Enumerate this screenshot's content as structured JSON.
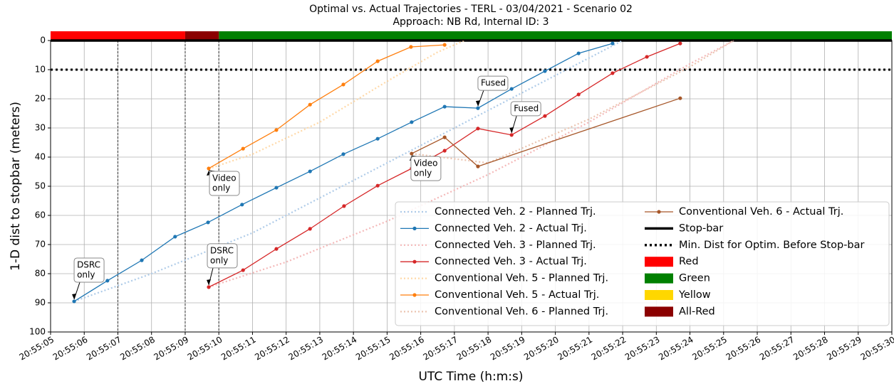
{
  "chart_data": {
    "type": "line",
    "title": "Optimal vs. Actual Trajectories - TERL - 03/04/2021 - Scenario 02",
    "subtitle": "Approach: NB Rd, Internal ID: 3",
    "x_label": "UTC Time (h:m:s)",
    "y_label": "1-D dist to stopbar (meters)",
    "xlim": [
      5,
      30
    ],
    "xticks": [
      {
        "value": 5,
        "label": "20:55:05"
      },
      {
        "value": 6,
        "label": "20:55:06"
      },
      {
        "value": 7,
        "label": "20:55:07"
      },
      {
        "value": 8,
        "label": "20:55:08"
      },
      {
        "value": 9,
        "label": "20:55:09"
      },
      {
        "value": 10,
        "label": "20:55:10"
      },
      {
        "value": 11,
        "label": "20:55:11"
      },
      {
        "value": 12,
        "label": "20:55:12"
      },
      {
        "value": 13,
        "label": "20:55:13"
      },
      {
        "value": 14,
        "label": "20:55:14"
      },
      {
        "value": 15,
        "label": "20:55:15"
      },
      {
        "value": 16,
        "label": "20:55:16"
      },
      {
        "value": 17,
        "label": "20:55:17"
      },
      {
        "value": 18,
        "label": "20:55:18"
      },
      {
        "value": 19,
        "label": "20:55:19"
      },
      {
        "value": 20,
        "label": "20:55:20"
      },
      {
        "value": 21,
        "label": "20:55:21"
      },
      {
        "value": 22,
        "label": "20:55:22"
      },
      {
        "value": 23,
        "label": "20:55:23"
      },
      {
        "value": 24,
        "label": "20:55:24"
      },
      {
        "value": 25,
        "label": "20:55:25"
      },
      {
        "value": 26,
        "label": "20:55:26"
      },
      {
        "value": 27,
        "label": "20:55:27"
      },
      {
        "value": 28,
        "label": "20:55:28"
      },
      {
        "value": 29,
        "label": "20:55:29"
      },
      {
        "value": 30,
        "label": "20:55:30"
      }
    ],
    "ylim": [
      100,
      0
    ],
    "yticks": [
      0,
      10,
      20,
      30,
      40,
      50,
      60,
      70,
      80,
      90,
      100
    ],
    "grid": true,
    "legend": "lower right",
    "series": [
      {
        "name": "Connected Veh. 2 - Planned Trj.",
        "color": "#aecbe8",
        "style": "dotted",
        "markers": false,
        "x": [
          5.7,
          8,
          11,
          14,
          17,
          20,
          22
        ],
        "values": [
          89.5,
          80,
          66,
          48,
          30,
          12,
          0
        ]
      },
      {
        "name": "Connected Veh. 2 - Actual Trj.",
        "color": "#1f77b4",
        "style": "solid",
        "markers": true,
        "x": [
          5.7,
          6.69,
          7.71,
          8.7,
          9.68,
          10.69,
          11.71,
          12.71,
          13.7,
          14.72,
          15.73,
          16.71,
          17.7,
          18.7,
          19.69,
          20.69,
          21.7
        ],
        "values": [
          89.5,
          82.4,
          75.4,
          67.3,
          62.4,
          56.3,
          50.5,
          44.9,
          39,
          33.7,
          28,
          22.7,
          23.2,
          16.6,
          10.5,
          4.4,
          1
        ]
      },
      {
        "name": "Connected Veh. 3 - Planned Trj.",
        "color": "#f4b8b8",
        "style": "dotted",
        "markers": false,
        "x": [
          9.7,
          12,
          15,
          18,
          21,
          24,
          25.3
        ],
        "values": [
          84.6,
          76,
          62,
          46,
          28,
          8,
          0
        ]
      },
      {
        "name": "Connected Veh. 3 - Actual Trj.",
        "color": "#d62728",
        "style": "solid",
        "markers": true,
        "x": [
          9.7,
          10.72,
          11.71,
          12.71,
          13.72,
          14.72,
          15.73,
          16.71,
          17.7,
          18.7,
          19.69,
          20.69,
          21.7,
          22.72,
          23.71
        ],
        "values": [
          84.6,
          78.8,
          71.5,
          64.6,
          56.8,
          49.8,
          43.9,
          37.8,
          30.2,
          32.4,
          25.9,
          18.5,
          11.2,
          5.6,
          1
        ]
      },
      {
        "name": "Conventional Veh. 5 - Planned Trj.",
        "color": "#ffd9a8",
        "style": "dotted",
        "markers": false,
        "x": [
          9.7,
          11,
          13,
          15,
          16.5,
          17.3
        ],
        "values": [
          44,
          39,
          28,
          14,
          4,
          0
        ]
      },
      {
        "name": "Conventional Veh. 5 - Actual Trj.",
        "color": "#ff7f0e",
        "style": "solid",
        "markers": true,
        "x": [
          9.7,
          10.72,
          11.71,
          12.71,
          13.7,
          14.72,
          15.71,
          16.71
        ],
        "values": [
          43.9,
          37.1,
          30.7,
          22,
          15.1,
          7.1,
          2.2,
          1.5
        ]
      },
      {
        "name": "Conventional Veh. 6 - Planned Trj.",
        "color": "#ebc4b0",
        "style": "dotted",
        "markers": false,
        "x": [
          15.73,
          18,
          21,
          24,
          25.3
        ],
        "values": [
          38.8,
          42,
          27,
          9,
          0
        ]
      },
      {
        "name": "Conventional Veh. 6 - Actual Trj.",
        "color": "#a65628",
        "style": "solid",
        "markers": true,
        "x": [
          15.73,
          16.71,
          17.7,
          23.71
        ],
        "values": [
          38.8,
          33.2,
          43.2,
          19.8
        ]
      }
    ],
    "reference_lines": [
      {
        "name": "Stop-bar",
        "value": 0,
        "style": "solid",
        "color": "#000000"
      },
      {
        "name": "Min. Dist for Optim. Before Stop-bar",
        "value": 10,
        "style": "dotted",
        "color": "#000000"
      }
    ],
    "signal_phases": [
      {
        "name": "Red",
        "color": "#ff0000",
        "start": 5,
        "end": 9
      },
      {
        "name": "Green",
        "color": "#008000",
        "start": 10,
        "end": 30
      },
      {
        "name": "Yellow",
        "color": "#ffd700"
      },
      {
        "name": "All-Red",
        "color": "#8b0000",
        "start": 9,
        "end": 10
      }
    ],
    "phase_lines": [
      7,
      9,
      10
    ],
    "annotations": [
      {
        "text": [
          "DSRC",
          "only"
        ],
        "x": 5.7,
        "y": 89.5
      },
      {
        "text": [
          "DSRC",
          "only"
        ],
        "x": 9.7,
        "y": 84.6
      },
      {
        "text": [
          "Video",
          "only"
        ],
        "x": 9.7,
        "y": 43.9
      },
      {
        "text": [
          "Video",
          "only"
        ],
        "x": 15.73,
        "y": 38.8
      },
      {
        "text": [
          "Fused"
        ],
        "x": 17.7,
        "y": 23.2
      },
      {
        "text": [
          "Fused"
        ],
        "x": 18.7,
        "y": 32.4
      }
    ]
  }
}
